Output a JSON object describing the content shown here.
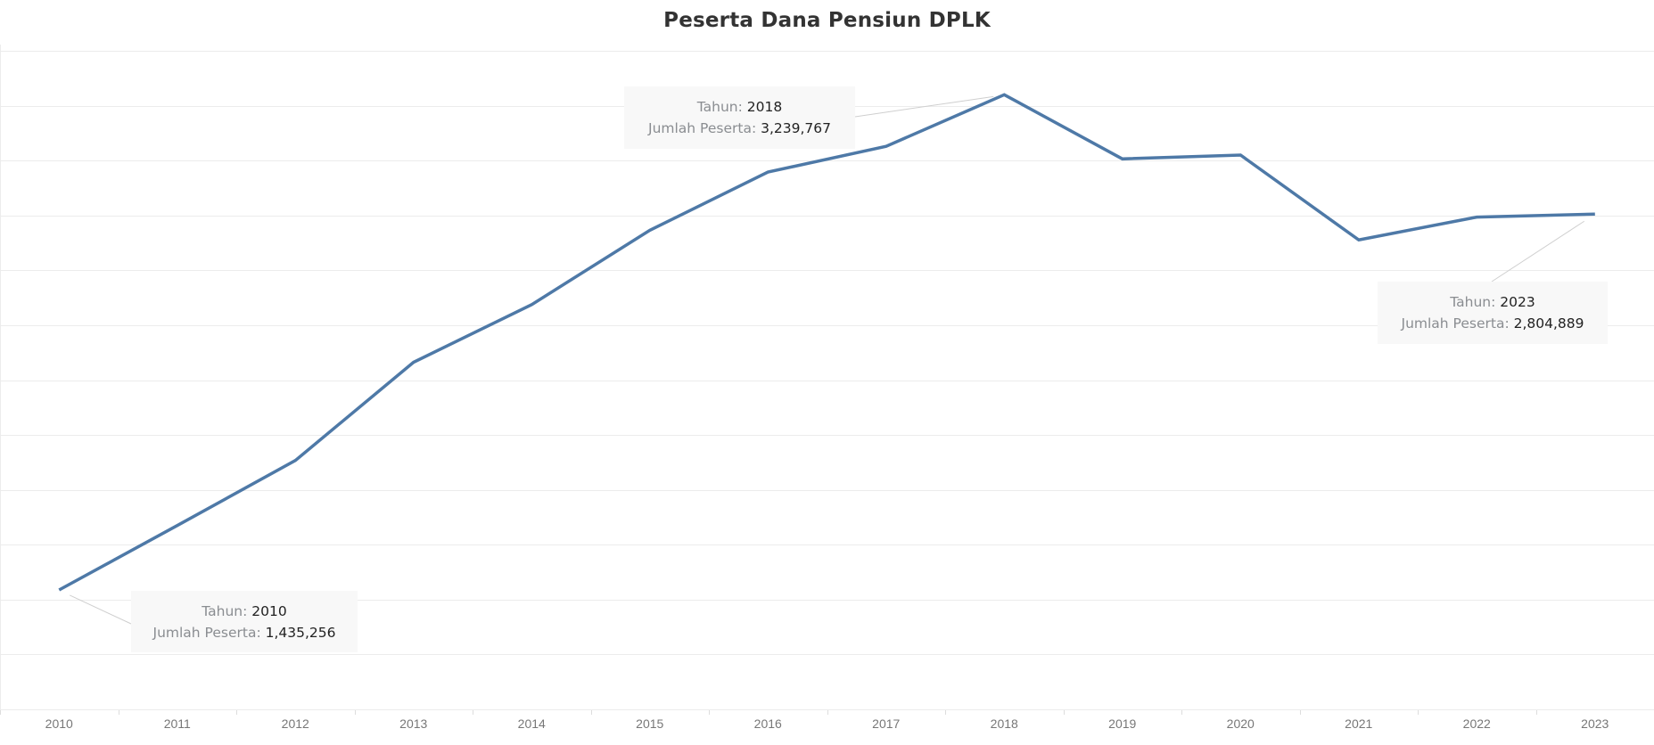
{
  "chart_data": {
    "type": "line",
    "title": "Peserta Dana Pensiun DPLK",
    "xlabel": "",
    "ylabel": "",
    "categories": [
      "2010",
      "2011",
      "2012",
      "2013",
      "2014",
      "2015",
      "2016",
      "2017",
      "2018",
      "2019",
      "2020",
      "2021",
      "2022",
      "2023"
    ],
    "series": [
      {
        "name": "Jumlah Peserta",
        "color": "#4e79a7",
        "values": [
          1435256,
          1670000,
          1907000,
          2265000,
          2475000,
          2746000,
          2958000,
          3052000,
          3239767,
          3006000,
          3020000,
          2711000,
          2794000,
          2804889
        ]
      }
    ],
    "ylim": [
      1000000,
      3400000
    ],
    "y_gridlines": [
      1000000,
      1200000,
      1400000,
      1600000,
      1800000,
      2000000,
      2200000,
      2400000,
      2600000,
      2800000,
      3000000,
      3200000,
      3400000
    ],
    "grid": true,
    "y_axis_labels_visible": false,
    "legend": "none",
    "annotations": [
      {
        "year": "2010",
        "tahun_label": "Tahun:",
        "tahun_value": "2010",
        "jumlah_label": "Jumlah Peserta:",
        "jumlah_value": "1,435,256"
      },
      {
        "year": "2018",
        "tahun_label": "Tahun:",
        "tahun_value": "2018",
        "jumlah_label": "Jumlah Peserta:",
        "jumlah_value": "3,239,767"
      },
      {
        "year": "2023",
        "tahun_label": "Tahun:",
        "tahun_value": "2023",
        "jumlah_label": "Jumlah Peserta:",
        "jumlah_value": "2,804,889"
      }
    ]
  },
  "colors": {
    "line": "#4e79a7",
    "grid": "#ececec",
    "annotation_bg": "#f8f8f8",
    "title": "#333333",
    "axis_label": "#777777"
  }
}
